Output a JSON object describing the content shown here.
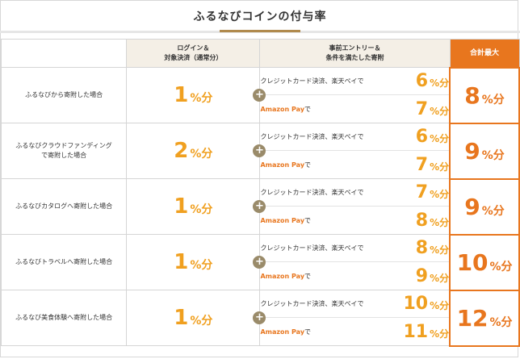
{
  "title": "ふるなびコインの付与率",
  "headers": {
    "login_line1": "ログイン＆",
    "login_line2": "対象決済（通常分）",
    "entry_line1": "事前エントリー＆",
    "entry_line2": "条件を満たした寄附",
    "total": "合計最大"
  },
  "unit": "%分",
  "plus_symbol": "+",
  "credit_label": "クレジットカード決済、楽天ペイで",
  "amazon_brand": "Amazon Pay",
  "amazon_suffix": "で",
  "rows": [
    {
      "label1": "ふるなびから寄附した場合",
      "label2": "",
      "login": "1",
      "credit": "6",
      "amazon": "7",
      "total": "8"
    },
    {
      "label1": "ふるなびクラウドファンディング",
      "label2": "で寄附した場合",
      "login": "2",
      "credit": "6",
      "amazon": "7",
      "total": "9"
    },
    {
      "label1": "ふるなびカタログへ寄附した場合",
      "label2": "",
      "login": "1",
      "credit": "7",
      "amazon": "8",
      "total": "9"
    },
    {
      "label1": "ふるなびトラベルへ寄附した場合",
      "label2": "",
      "login": "1",
      "credit": "8",
      "amazon": "9",
      "total": "10"
    },
    {
      "label1": "ふるなび美食体験へ寄附した場合",
      "label2": "",
      "login": "1",
      "credit": "10",
      "amazon": "11",
      "total": "12"
    }
  ],
  "colors": {
    "accent_orange": "#e8761e",
    "value_yellow": "#f0a020",
    "header_bg": "#f4efe6",
    "title_underline": "#b08a4d",
    "plus_bg": "#9a8b6a"
  }
}
